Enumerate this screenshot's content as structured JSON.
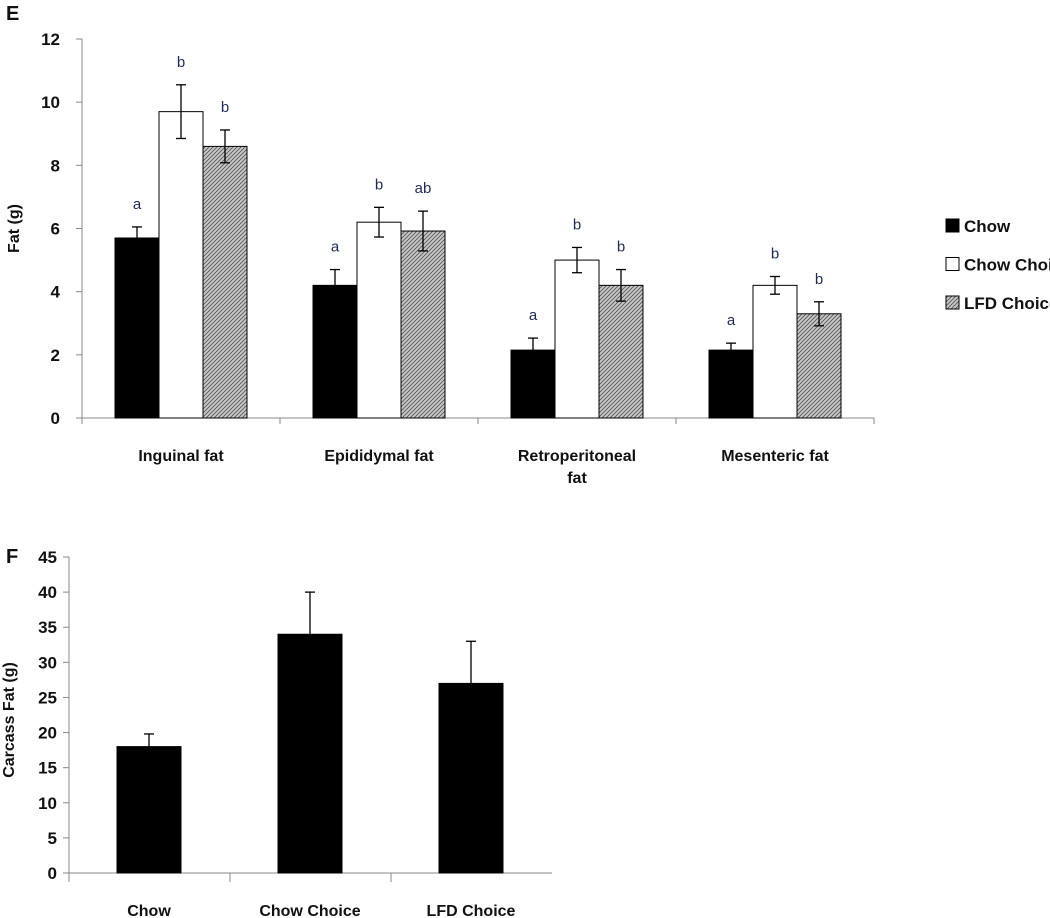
{
  "chart_data": [
    {
      "type": "bar",
      "panel_label": "E",
      "ylabel": "Fat (g)",
      "ylim": [
        0,
        12
      ],
      "yticks": [
        0,
        2,
        4,
        6,
        8,
        10,
        12
      ],
      "categories": [
        "Inguinal fat",
        "Epididymal fat",
        "Retroperitoneal fat",
        "Mesenteric fat"
      ],
      "category_lines": [
        [
          "Inguinal fat"
        ],
        [
          "Epididymal fat"
        ],
        [
          "Retroperitoneal",
          "fat"
        ],
        [
          "Mesenteric fat"
        ]
      ],
      "legend_position": "right",
      "series": [
        {
          "name": "Chow",
          "color": "#000000",
          "pattern": "solid",
          "values": [
            5.7,
            4.2,
            2.15,
            2.15
          ],
          "errors": [
            0.35,
            0.5,
            0.38,
            0.22
          ],
          "significance": [
            "a",
            "a",
            "a",
            "a"
          ]
        },
        {
          "name": "Chow Choice",
          "color": "#ffffff",
          "pattern": "solid",
          "values": [
            9.7,
            6.2,
            5.0,
            4.2
          ],
          "errors": [
            0.85,
            0.47,
            0.4,
            0.28
          ],
          "significance": [
            "b",
            "b",
            "b",
            "b"
          ]
        },
        {
          "name": "LFD Choice",
          "color": "#b0b0b0",
          "pattern": "hatched",
          "values": [
            8.6,
            5.92,
            4.2,
            3.3
          ],
          "errors": [
            0.52,
            0.63,
            0.5,
            0.38
          ],
          "significance": [
            "b",
            "ab",
            "b",
            "b"
          ]
        }
      ]
    },
    {
      "type": "bar",
      "panel_label": "F",
      "ylabel": "Carcass Fat (g)",
      "ylim": [
        0,
        45
      ],
      "yticks": [
        0,
        5,
        10,
        15,
        20,
        25,
        30,
        35,
        40,
        45
      ],
      "categories": [
        "Chow",
        "Chow Choice",
        "LFD Choice"
      ],
      "values": [
        18,
        34,
        27
      ],
      "errors": [
        1.8,
        6,
        6
      ],
      "color": "#000000"
    }
  ]
}
